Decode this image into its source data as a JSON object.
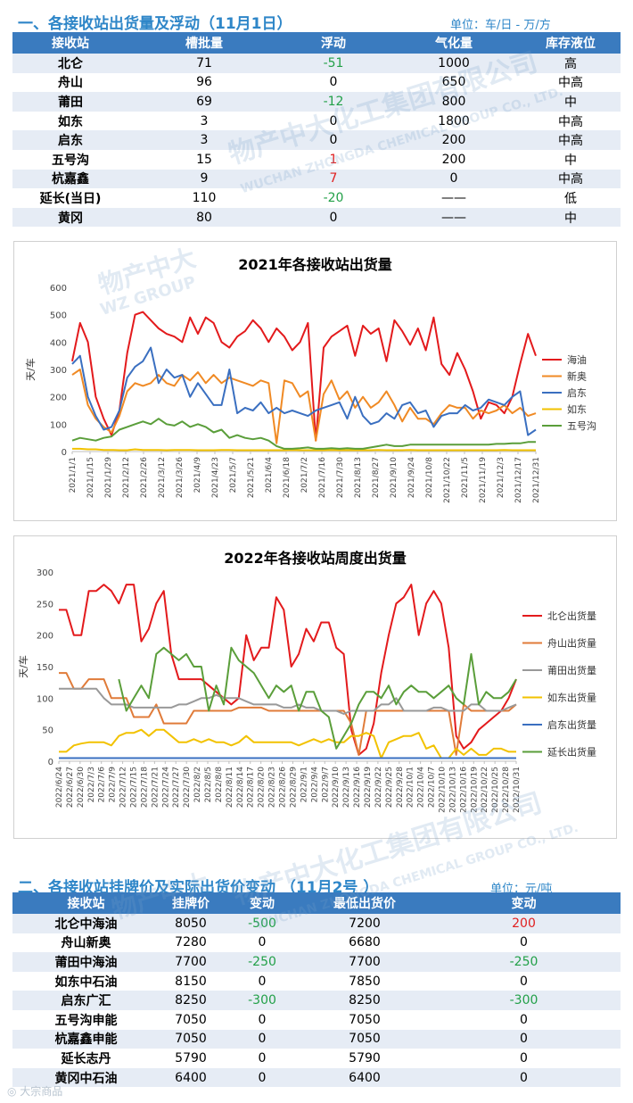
{
  "section1": {
    "title": "一、各接收站出货量及浮动（11月1日）",
    "unit": "单位：车/日 - 万/方",
    "headers": [
      "接收站",
      "槽批量",
      "浮动",
      "气化量",
      "库存液位"
    ],
    "rows": [
      {
        "station": "北仑",
        "tank": "71",
        "float": "-51",
        "dir": "down",
        "gas": "1000",
        "level": "高"
      },
      {
        "station": "舟山",
        "tank": "96",
        "float": "0",
        "dir": "",
        "gas": "650",
        "level": "中高"
      },
      {
        "station": "莆田",
        "tank": "69",
        "float": "-12",
        "dir": "down",
        "gas": "800",
        "level": "中"
      },
      {
        "station": "如东",
        "tank": "3",
        "float": "0",
        "dir": "",
        "gas": "1800",
        "level": "中高"
      },
      {
        "station": "启东",
        "tank": "3",
        "float": "0",
        "dir": "",
        "gas": "200",
        "level": "中高"
      },
      {
        "station": "五号沟",
        "tank": "15",
        "float": "1",
        "dir": "up",
        "gas": "200",
        "level": "中"
      },
      {
        "station": "杭嘉鑫",
        "tank": "9",
        "float": "7",
        "dir": "up",
        "gas": "0",
        "level": "中高"
      },
      {
        "station": "延长(当日)",
        "tank": "110",
        "float": "-20",
        "dir": "down",
        "gas": "——",
        "level": "低"
      },
      {
        "station": "黄冈",
        "tank": "80",
        "float": "0",
        "dir": "",
        "gas": "——",
        "level": "中"
      }
    ]
  },
  "chart_data": [
    {
      "type": "line",
      "title": "2021年各接收站出货量",
      "ylabel": "天/车",
      "ylim": [
        0,
        600
      ],
      "yticks": [
        0,
        100,
        200,
        300,
        400,
        500,
        600
      ],
      "xticks": [
        "2021/1/1",
        "2021/1/15",
        "2021/1/29",
        "2021/2/12",
        "2021/2/26",
        "2021/3/12",
        "2021/3/26",
        "2021/4/9",
        "2021/4/23",
        "2021/5/7",
        "2021/5/21",
        "2021/6/4",
        "2021/6/18",
        "2021/7/2",
        "2021/7/16",
        "2021/7/30",
        "2021/8/13",
        "2021/8/27",
        "2021/9/10",
        "2021/9/24",
        "2021/10/8",
        "2021/10/22",
        "2021/11/5",
        "2021/11/19",
        "2021/12/3",
        "2021/12/17",
        "2021/12/31"
      ],
      "legend_position": "right",
      "series": [
        {
          "name": "海油",
          "color": "#e31a1c",
          "values": [
            330,
            470,
            400,
            200,
            120,
            60,
            150,
            360,
            500,
            510,
            480,
            450,
            430,
            420,
            400,
            490,
            430,
            490,
            470,
            400,
            380,
            420,
            440,
            480,
            450,
            400,
            450,
            420,
            370,
            400,
            470,
            40,
            380,
            420,
            440,
            460,
            350,
            460,
            430,
            450,
            330,
            480,
            440,
            390,
            450,
            370,
            490,
            320,
            280,
            360,
            300,
            220,
            120,
            180,
            170,
            140,
            200,
            320,
            430,
            350
          ]
        },
        {
          "name": "新奥",
          "color": "#f08a24",
          "values": [
            280,
            300,
            170,
            120,
            90,
            70,
            130,
            220,
            250,
            240,
            250,
            280,
            250,
            240,
            280,
            260,
            290,
            250,
            280,
            250,
            270,
            260,
            250,
            240,
            260,
            250,
            30,
            260,
            250,
            200,
            220,
            40,
            210,
            260,
            190,
            220,
            160,
            200,
            160,
            180,
            220,
            170,
            110,
            160,
            120,
            120,
            100,
            140,
            170,
            160,
            160,
            120,
            150,
            140,
            150,
            170,
            140,
            160,
            130,
            140
          ]
        },
        {
          "name": "启东",
          "color": "#3a6fc0",
          "values": [
            320,
            350,
            200,
            130,
            80,
            90,
            150,
            270,
            310,
            330,
            380,
            250,
            300,
            270,
            280,
            200,
            250,
            210,
            170,
            170,
            300,
            140,
            160,
            150,
            180,
            140,
            160,
            140,
            150,
            140,
            130,
            150,
            160,
            170,
            180,
            120,
            200,
            130,
            100,
            110,
            140,
            120,
            170,
            180,
            140,
            150,
            90,
            130,
            140,
            140,
            170,
            150,
            160,
            190,
            180,
            170,
            200,
            220,
            60,
            80
          ]
        },
        {
          "name": "如东",
          "color": "#f2c200",
          "values": [
            10,
            10,
            8,
            8,
            6,
            6,
            5,
            5,
            8,
            6,
            6,
            6,
            5,
            6,
            6,
            6,
            5,
            5,
            5,
            6,
            6,
            5,
            5,
            5,
            5,
            5,
            5,
            5,
            6,
            5,
            5,
            5,
            5,
            6,
            5,
            5,
            5,
            5,
            5,
            6,
            5,
            5,
            5,
            6,
            5,
            5,
            5,
            5,
            5,
            5,
            5,
            5,
            5,
            5,
            5,
            6,
            5,
            5,
            5,
            5
          ]
        },
        {
          "name": "五号沟",
          "color": "#5a9e3a",
          "values": [
            40,
            50,
            45,
            40,
            50,
            55,
            80,
            90,
            100,
            110,
            100,
            120,
            100,
            95,
            110,
            90,
            100,
            90,
            70,
            80,
            50,
            60,
            50,
            45,
            50,
            40,
            20,
            10,
            10,
            12,
            15,
            10,
            10,
            12,
            10,
            12,
            10,
            10,
            15,
            20,
            25,
            20,
            20,
            25,
            25,
            25,
            25,
            25,
            25,
            25,
            25,
            25,
            25,
            25,
            28,
            28,
            30,
            30,
            35,
            35
          ]
        }
      ]
    },
    {
      "type": "line",
      "title": "2022年各接收站周度出货量",
      "ylabel": "天/车",
      "ylim": [
        0,
        300
      ],
      "yticks": [
        0,
        50,
        100,
        150,
        200,
        250,
        300
      ],
      "xticks": [
        "2022/6/24",
        "2022/6/27",
        "2022/6/30",
        "2022/7/3",
        "2022/7/6",
        "2022/7/9",
        "2022/7/12",
        "2022/7/15",
        "2022/7/18",
        "2022/7/21",
        "2022/7/24",
        "2022/7/27",
        "2022/7/30",
        "2022/8/2",
        "2022/8/5",
        "2022/8/8",
        "2022/8/11",
        "2022/8/14",
        "2022/8/17",
        "2022/8/20",
        "2022/8/23",
        "2022/8/26",
        "2022/8/29",
        "2022/9/1",
        "2022/9/4",
        "2022/9/7",
        "2022/9/10",
        "2022/9/13",
        "2022/9/16",
        "2022/9/19",
        "2022/9/22",
        "2022/9/25",
        "2022/9/28",
        "2022/10/1",
        "2022/10/4",
        "2022/10/7",
        "2022/10/10",
        "2022/10/13",
        "2022/10/16",
        "2022/10/19",
        "2022/10/22",
        "2022/10/25",
        "2022/10/28",
        "2022/10/31"
      ],
      "legend_position": "right",
      "series": [
        {
          "name": "北仑出货量",
          "color": "#e31a1c",
          "values": [
            240,
            240,
            200,
            200,
            270,
            270,
            280,
            270,
            250,
            280,
            280,
            190,
            210,
            250,
            270,
            170,
            130,
            130,
            130,
            130,
            120,
            110,
            100,
            90,
            100,
            200,
            160,
            180,
            180,
            260,
            240,
            150,
            170,
            210,
            190,
            220,
            220,
            180,
            170,
            50,
            10,
            20,
            60,
            140,
            200,
            250,
            260,
            280,
            200,
            250,
            270,
            250,
            180,
            40,
            20,
            30,
            50,
            60,
            70,
            80,
            100,
            130
          ]
        },
        {
          "name": "舟山出货量",
          "color": "#e07b39",
          "values": [
            140,
            140,
            115,
            115,
            130,
            130,
            130,
            100,
            100,
            100,
            70,
            70,
            70,
            90,
            60,
            60,
            60,
            60,
            80,
            80,
            80,
            80,
            80,
            80,
            85,
            85,
            85,
            85,
            80,
            80,
            80,
            80,
            80,
            80,
            80,
            80,
            80,
            80,
            80,
            60,
            10,
            80,
            80,
            80,
            80,
            80,
            80,
            80,
            80,
            80,
            80,
            80,
            80,
            10,
            90,
            80,
            80,
            80,
            80,
            80,
            80,
            90
          ]
        },
        {
          "name": "莆田出货量",
          "color": "#999999",
          "values": [
            115,
            115,
            115,
            115,
            115,
            115,
            100,
            90,
            90,
            90,
            85,
            85,
            85,
            85,
            85,
            85,
            90,
            90,
            95,
            100,
            100,
            105,
            100,
            100,
            100,
            95,
            90,
            90,
            90,
            90,
            85,
            85,
            90,
            85,
            85,
            80,
            80,
            80,
            75,
            80,
            80,
            80,
            80,
            90,
            90,
            100,
            80,
            80,
            80,
            80,
            85,
            85,
            80,
            80,
            80,
            90,
            90,
            80,
            80,
            80,
            85,
            90
          ]
        },
        {
          "name": "如东出货量",
          "color": "#f2c200",
          "values": [
            15,
            15,
            25,
            28,
            30,
            30,
            30,
            25,
            40,
            45,
            45,
            50,
            40,
            50,
            50,
            40,
            30,
            30,
            35,
            30,
            35,
            30,
            30,
            25,
            30,
            40,
            30,
            30,
            30,
            30,
            30,
            30,
            25,
            30,
            35,
            30,
            35,
            30,
            30,
            40,
            40,
            45,
            40,
            5,
            30,
            35,
            40,
            40,
            45,
            20,
            25,
            5,
            5,
            20,
            10,
            20,
            10,
            10,
            20,
            20,
            15,
            15
          ]
        },
        {
          "name": "启东出货量",
          "color": "#3a6fc0",
          "values": [
            5,
            5,
            5,
            5,
            5,
            5,
            5,
            5,
            5,
            5,
            5,
            5,
            5,
            5,
            5,
            5,
            5,
            5,
            5,
            5,
            5,
            5,
            5,
            5,
            5,
            5,
            5,
            5,
            5,
            5,
            5,
            5,
            5,
            5,
            5,
            5,
            5,
            5,
            5,
            5,
            5,
            5,
            5,
            5,
            5,
            5,
            5,
            5,
            5,
            5,
            5,
            5,
            5,
            5,
            5,
            5,
            5,
            5,
            5,
            5,
            5,
            5
          ]
        },
        {
          "name": "延长出货量",
          "color": "#5a9e3a",
          "values": [
            null,
            null,
            null,
            null,
            null,
            null,
            null,
            null,
            130,
            80,
            100,
            120,
            100,
            170,
            180,
            170,
            160,
            170,
            150,
            150,
            80,
            120,
            90,
            180,
            160,
            150,
            140,
            120,
            100,
            120,
            110,
            120,
            80,
            110,
            110,
            80,
            70,
            20,
            40,
            60,
            90,
            110,
            110,
            100,
            120,
            90,
            110,
            120,
            110,
            110,
            100,
            110,
            120,
            100,
            90,
            170,
            90,
            110,
            100,
            100,
            110,
            130
          ]
        }
      ]
    }
  ],
  "section2": {
    "title": "二、各接收站挂牌价及实际出货价变动 （11月2号 ）",
    "unit": "单位：元/吨",
    "headers": [
      "接收站",
      "挂牌价",
      "变动",
      "最低出货价",
      "变动"
    ],
    "rows": [
      {
        "station": "北仑中海油",
        "list": "8050",
        "chg1": "-500",
        "d1": "down",
        "low": "7200",
        "chg2": "200",
        "d2": "up"
      },
      {
        "station": "舟山新奥",
        "list": "7280",
        "chg1": "0",
        "d1": "",
        "low": "6680",
        "chg2": "0",
        "d2": ""
      },
      {
        "station": "莆田中海油",
        "list": "7700",
        "chg1": "-250",
        "d1": "down",
        "low": "7700",
        "chg2": "-250",
        "d2": "down"
      },
      {
        "station": "如东中石油",
        "list": "8150",
        "chg1": "0",
        "d1": "",
        "low": "7850",
        "chg2": "0",
        "d2": ""
      },
      {
        "station": "启东广汇",
        "list": "8250",
        "chg1": "-300",
        "d1": "down",
        "low": "8250",
        "chg2": "-300",
        "d2": "down"
      },
      {
        "station": "五号沟申能",
        "list": "7050",
        "chg1": "0",
        "d1": "",
        "low": "7050",
        "chg2": "0",
        "d2": ""
      },
      {
        "station": "杭嘉鑫申能",
        "list": "7050",
        "chg1": "0",
        "d1": "",
        "low": "7050",
        "chg2": "0",
        "d2": ""
      },
      {
        "station": "延长志丹",
        "list": "5790",
        "chg1": "0",
        "d1": "",
        "low": "5790",
        "chg2": "0",
        "d2": ""
      },
      {
        "station": "黄冈中石油",
        "list": "6400",
        "chg1": "0",
        "d1": "",
        "low": "6400",
        "chg2": "0",
        "d2": ""
      }
    ]
  },
  "watermark": {
    "cn": "物产中大化工集团有限公司",
    "en": "WUCHAN ZHONGDA CHEMICAL GROUP CO., LTD.",
    "logo": "物产中大",
    "logo_en": "WZ GROUP"
  },
  "footer": {
    "text": "大宗商品"
  }
}
